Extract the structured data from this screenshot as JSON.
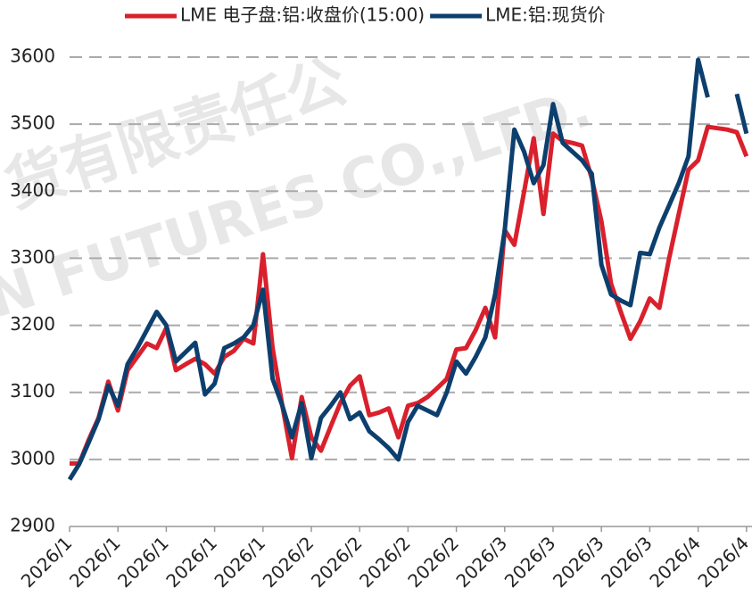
{
  "chart_data": {
    "type": "line",
    "watermark": [
      "货有限责任公",
      "N FUTURES CO.,LTD."
    ],
    "categories": [
      "2026/1",
      null,
      null,
      null,
      null,
      "2026/1",
      null,
      null,
      null,
      null,
      "2026/1",
      null,
      null,
      null,
      null,
      "2026/1",
      null,
      null,
      null,
      null,
      "2026/1",
      null,
      null,
      null,
      null,
      "2026/2",
      null,
      null,
      null,
      null,
      "2026/2",
      null,
      null,
      null,
      null,
      "2026/2",
      null,
      null,
      null,
      null,
      "2026/2",
      null,
      null,
      null,
      null,
      "2026/3",
      null,
      null,
      null,
      null,
      "2026/3",
      null,
      null,
      null,
      null,
      "2026/3",
      null,
      null,
      null,
      null,
      "2026/3",
      null,
      null,
      null,
      null,
      "2026/4",
      null,
      null,
      null,
      null,
      "2026/4"
    ],
    "series": [
      {
        "name": "LME 电子盘:铝:收盘价(15:00)",
        "color": "#d9202c",
        "values": [
          2994,
          2994,
          3030,
          3062,
          3116,
          3073,
          3133,
          3153,
          3173,
          3166,
          3196,
          3133,
          3142,
          3150,
          3142,
          3128,
          3153,
          3162,
          3180,
          3173,
          3306,
          3166,
          3080,
          3002,
          3093,
          3033,
          3013,
          3049,
          3084,
          3110,
          3124,
          3066,
          3070,
          3076,
          3033,
          3080,
          3084,
          3093,
          3106,
          3120,
          3164,
          3166,
          3193,
          3226,
          3182,
          3342,
          3320,
          3399,
          3479,
          3366,
          3486,
          3475,
          3472,
          3468,
          3419,
          3355,
          3262,
          3220,
          3180,
          3206,
          3240,
          3226,
          3300,
          3366,
          3432,
          3446,
          3496,
          3494,
          3492,
          3488,
          3452
        ]
      },
      {
        "name": "LME:铝:现货价",
        "color": "#0d3f6e",
        "values": [
          2970,
          2993,
          3026,
          3060,
          3110,
          3080,
          3142,
          3166,
          3193,
          3220,
          3200,
          3146,
          3160,
          3174,
          3097,
          3113,
          3166,
          3173,
          3182,
          3200,
          3253,
          3120,
          3080,
          3033,
          3084,
          3002,
          3062,
          3080,
          3100,
          3060,
          3070,
          3042,
          3030,
          3017,
          3000,
          3056,
          3080,
          3073,
          3066,
          3100,
          3146,
          3128,
          3153,
          3182,
          3246,
          3342,
          3492,
          3459,
          3412,
          3439,
          3530,
          3472,
          3459,
          3446,
          3426,
          3290,
          3246,
          3237,
          3230,
          3308,
          3306,
          3346,
          3379,
          3412,
          3452,
          3596,
          3540,
          null,
          null,
          3545,
          3486
        ]
      }
    ],
    "ylim": [
      2900,
      3600
    ],
    "yticks": [
      2900,
      3000,
      3100,
      3200,
      3300,
      3400,
      3500,
      3600
    ],
    "grid": true
  }
}
